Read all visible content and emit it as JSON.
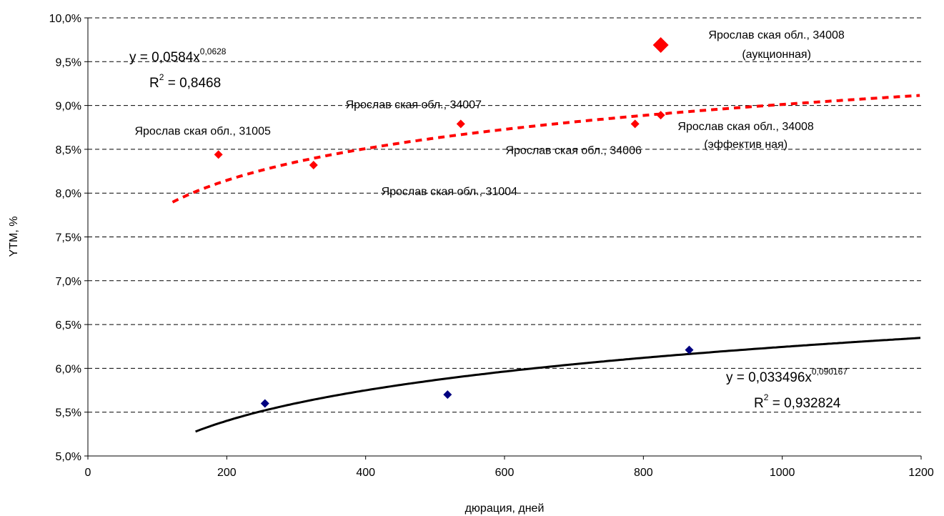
{
  "chart_data": {
    "type": "scatter",
    "xlabel": "дюрация, дней",
    "ylabel": "YTM, %",
    "xlim": [
      0,
      1200
    ],
    "ylim": [
      5.0,
      10.0
    ],
    "x_ticks": [
      "0",
      "200",
      "400",
      "600",
      "800",
      "1000",
      "1200"
    ],
    "y_ticks": [
      "5,0%",
      "5,5%",
      "6,0%",
      "6,5%",
      "7,0%",
      "7,5%",
      "8,0%",
      "8,5%",
      "9,0%",
      "9,5%",
      "10,0%"
    ],
    "grid": "horizontal dashed",
    "series": [
      {
        "color": "#ff0000",
        "marker": "diamond",
        "points": [
          {
            "x": 188,
            "y": 8.44,
            "label": "Ярослав ская обл., 31005"
          },
          {
            "x": 325,
            "y": 8.32,
            "label": "Ярослав ская обл., 31004"
          },
          {
            "x": 537,
            "y": 8.79,
            "label": "Ярослав ская обл., 34007"
          },
          {
            "x": 788,
            "y": 8.79,
            "label": "Ярослав ская обл., 34006"
          },
          {
            "x": 825,
            "y": 8.89,
            "label": [
              "Ярослав ская обл., 34008",
              "(эффектив ная)"
            ]
          },
          {
            "x": 825,
            "y": 9.69,
            "label": [
              "Ярослав ская обл., 34008",
              "(аукционная)"
            ],
            "large": true
          }
        ],
        "trendline": {
          "style": "dashed",
          "color": "#ff0000",
          "a": 0.0584,
          "b": 0.0628,
          "x_range": [
            122,
            1200
          ],
          "equation": {
            "text": "y = 0,0584x",
            "exponent": "0,0628"
          },
          "r2": {
            "prefix": "R",
            "sup": "2",
            "text": " = 0,8468"
          }
        }
      },
      {
        "color": "#000080",
        "marker": "diamond",
        "points": [
          {
            "x": 255,
            "y": 5.6
          },
          {
            "x": 518,
            "y": 5.7
          },
          {
            "x": 866,
            "y": 6.21
          }
        ],
        "trendline": {
          "style": "solid",
          "color": "#000000",
          "a": 0.033496,
          "b": 0.090167,
          "x_range": [
            155,
            1200
          ],
          "equation": {
            "text": "y = 0,033496x",
            "exponent": "0,090167"
          },
          "r2": {
            "prefix": "R",
            "sup": "2",
            "text": " = 0,932824"
          }
        }
      }
    ]
  }
}
